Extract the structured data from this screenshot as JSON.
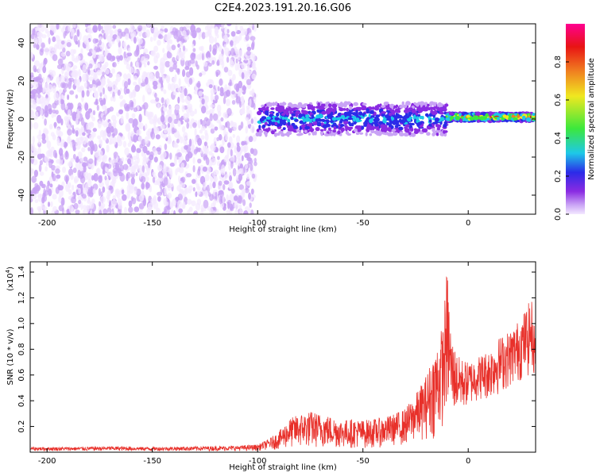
{
  "title": "C2E4.2023.191.20.16.G06",
  "colors": {
    "signal_line": "#e8302a",
    "axis": "#000000",
    "background": "#ffffff",
    "colormap": [
      "#f3e8ff",
      "#c9a3f5",
      "#8a2be2",
      "#2b2be8",
      "#1ec8e8",
      "#3ce83c",
      "#f0e820",
      "#f08020",
      "#e81414",
      "#ff0090"
    ]
  },
  "chart_data": [
    {
      "type": "heatmap",
      "title": "C2E4.2023.191.20.16.G06",
      "xlabel": "Height of straight line (km)",
      "ylabel": "Frequency (Hz)",
      "xlim": [
        -208,
        32
      ],
      "ylim": [
        -50,
        50
      ],
      "x_ticks": [
        -200,
        -150,
        -100,
        -50,
        0
      ],
      "y_ticks": [
        -40,
        -20,
        0,
        20,
        40
      ],
      "colorbar": {
        "label": "Normalized spectral amplitude",
        "range": [
          0,
          1
        ],
        "ticks": [
          0.0,
          0.2,
          0.4,
          0.6,
          0.8
        ]
      },
      "regions": [
        {
          "x_range": [
            -208,
            -101
          ],
          "y_range": [
            -50,
            50
          ],
          "description": "diffuse noise",
          "level": 0.2
        },
        {
          "x_range": [
            -100,
            -10
          ],
          "y_center": 0,
          "y_halfwidth": 6,
          "level": 0.5
        },
        {
          "x_range": [
            -10,
            32
          ],
          "y_center": 1,
          "y_halfwidth": 2,
          "level": 0.95
        }
      ],
      "legend": "colorbar-right",
      "grid": false
    },
    {
      "type": "line",
      "xlabel": "Height of straight line (km)",
      "ylabel": "SNR (10 * v/v)",
      "y_multiplier": "(x10^4)",
      "xlim": [
        -208,
        32
      ],
      "ylim": [
        0,
        1.48
      ],
      "x_ticks": [
        -200,
        -150,
        -100,
        -50,
        0
      ],
      "y_ticks": [
        0.2,
        0.4,
        0.6,
        0.8,
        1.0,
        1.2,
        1.4
      ],
      "series": [
        {
          "x": [
            -208,
            -190,
            -170,
            -150,
            -130,
            -110,
            -100,
            -95,
            -90,
            -85,
            -80,
            -75,
            -70,
            -65,
            -60,
            -55,
            -50,
            -45,
            -40,
            -35,
            -30,
            -25,
            -20,
            -15,
            -12,
            -10,
            -8,
            -5,
            0,
            5,
            10,
            15,
            20,
            25,
            30,
            32
          ],
          "y": [
            0.04,
            0.04,
            0.045,
            0.04,
            0.045,
            0.05,
            0.06,
            0.1,
            0.16,
            0.26,
            0.3,
            0.32,
            0.3,
            0.28,
            0.25,
            0.26,
            0.25,
            0.26,
            0.27,
            0.3,
            0.34,
            0.45,
            0.6,
            0.85,
            1.0,
            1.45,
            0.9,
            0.75,
            0.7,
            0.75,
            0.8,
            0.9,
            0.95,
            1.05,
            1.2,
            0.9
          ],
          "min": [
            0.01,
            0.01,
            0.01,
            0.01,
            0.01,
            0.01,
            0.01,
            0.02,
            0.02,
            0.03,
            0.03,
            0.03,
            0.03,
            0.03,
            0.03,
            0.03,
            0.03,
            0.03,
            0.04,
            0.05,
            0.05,
            0.08,
            0.1,
            0.1,
            0.2,
            0.3,
            0.3,
            0.3,
            0.35,
            0.4,
            0.4,
            0.45,
            0.5,
            0.55,
            0.6,
            0.6
          ]
        }
      ],
      "grid": false
    }
  ],
  "labels": {
    "x_axis_top": "Height of straight line (km)",
    "x_axis_bottom": "Height of straight line (km)",
    "y_axis_top": "Frequency (Hz)",
    "y_axis_bottom": "SNR (10 * v/v)",
    "y_multiplier_bottom": "(x10",
    "y_multiplier_exp": "4",
    "y_multiplier_close": ")",
    "colorbar": "Normalized spectral amplitude"
  },
  "x_tick_labels": [
    "-200",
    "-150",
    "-100",
    "-50",
    "0"
  ],
  "y_tick_labels_top": [
    "40",
    "20",
    "0",
    "-20",
    "-40"
  ],
  "y_tick_labels_bottom": [
    "1.4",
    "1.2",
    "1.0",
    "0.8",
    "0.6",
    "0.4",
    "0.2"
  ],
  "colorbar_tick_labels": [
    "0.8",
    "0.6",
    "0.4",
    "0.2",
    "0.0"
  ]
}
